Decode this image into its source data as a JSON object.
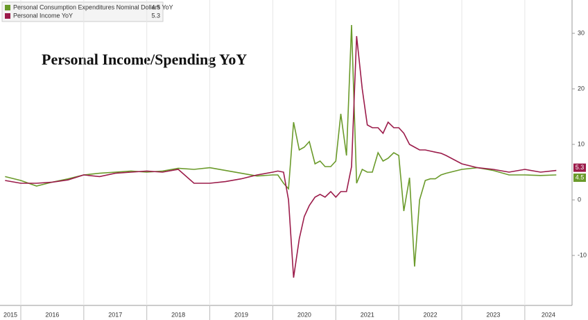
{
  "chart_data": {
    "type": "line",
    "title": "Personal Income/Spending YoY",
    "x": [
      2015.75,
      2016.0,
      2016.25,
      2016.5,
      2016.75,
      2017.0,
      2017.25,
      2017.5,
      2017.75,
      2018.0,
      2018.25,
      2018.5,
      2018.75,
      2019.0,
      2019.25,
      2019.5,
      2019.75,
      2020.0,
      2020.08,
      2020.17,
      2020.25,
      2020.33,
      2020.42,
      2020.5,
      2020.58,
      2020.67,
      2020.75,
      2020.83,
      2020.92,
      2021.0,
      2021.08,
      2021.17,
      2021.25,
      2021.33,
      2021.42,
      2021.5,
      2021.58,
      2021.67,
      2021.75,
      2021.83,
      2021.92,
      2022.0,
      2022.08,
      2022.17,
      2022.25,
      2022.33,
      2022.42,
      2022.5,
      2022.58,
      2022.67,
      2022.75,
      2023.0,
      2023.25,
      2023.5,
      2023.75,
      2024.0,
      2024.25,
      2024.5
    ],
    "series": [
      {
        "name": "Personal Consumption Expenditures Nominal Dollars YoY",
        "color": "#6a9a2a",
        "values": [
          4.2,
          3.5,
          2.5,
          3.2,
          3.8,
          4.5,
          4.8,
          5.0,
          5.2,
          5.0,
          5.2,
          5.7,
          5.5,
          5.8,
          5.3,
          4.8,
          4.3,
          4.5,
          4.5,
          3.0,
          2.0,
          14,
          9,
          9.5,
          10.5,
          6.5,
          7,
          6,
          6,
          7,
          15.5,
          8,
          31.5,
          3,
          5.5,
          5,
          5,
          8.5,
          7,
          7.5,
          8.5,
          8,
          -2,
          4,
          -12,
          0,
          3.5,
          3.8,
          3.8,
          4.5,
          4.8,
          5.5,
          5.8,
          5.3,
          4.5,
          4.5,
          4.4,
          4.5
        ]
      },
      {
        "name": "Personal Income YoY",
        "color": "#9b1b4a",
        "values": [
          3.5,
          3.0,
          3.0,
          3.2,
          3.6,
          4.5,
          4.2,
          4.8,
          5.0,
          5.2,
          5.0,
          5.5,
          3.0,
          3.0,
          3.3,
          3.8,
          4.5,
          5.0,
          5.2,
          5.0,
          0,
          -14,
          -7,
          -3,
          -1,
          0.5,
          1,
          0.5,
          1.5,
          0.5,
          1.5,
          1.5,
          6,
          29.5,
          20,
          13.5,
          13,
          13,
          12,
          14,
          13,
          13,
          12,
          10,
          9.5,
          9,
          9,
          8.8,
          8.6,
          8.4,
          8,
          6.5,
          5.8,
          5.5,
          5,
          5.5,
          5,
          5.3
        ]
      }
    ],
    "xlim": [
      2015.67,
      2024.75
    ],
    "xticks": [
      2015,
      2016,
      2017,
      2018,
      2019,
      2020,
      2021,
      2022,
      2023,
      2024
    ],
    "ylim": [
      -19,
      36
    ],
    "yticks": [
      -10,
      0,
      10,
      20,
      30
    ]
  }
}
